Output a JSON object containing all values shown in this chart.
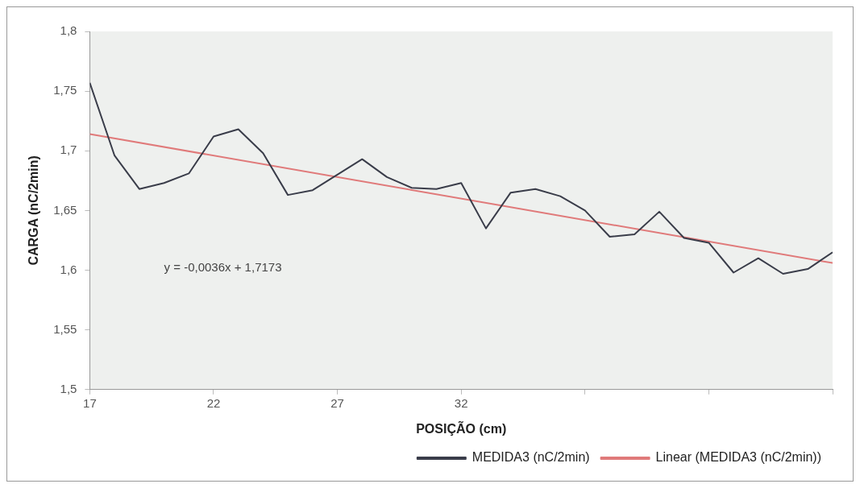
{
  "chart_data": {
    "type": "line",
    "xlabel": "POSIÇÃO (cm)",
    "ylabel": "CARGA (nC/2min)",
    "annotations": [
      "y = -0,0036x + 1,7173"
    ],
    "xlim": [
      17,
      47
    ],
    "xticks": [
      17,
      22,
      27,
      32,
      {
        "value": 37,
        "label": null
      },
      {
        "value": 42,
        "label": null
      },
      {
        "value": 47,
        "label": null
      }
    ],
    "ylim": [
      1.5,
      1.8
    ],
    "yticks": [
      {
        "value": 1.5,
        "label": "1,5"
      },
      {
        "value": 1.55,
        "label": "1,55"
      },
      {
        "value": 1.6,
        "label": "1,6"
      },
      {
        "value": 1.65,
        "label": "1,65"
      },
      {
        "value": 1.7,
        "label": "1,7"
      },
      {
        "value": 1.75,
        "label": "1,75"
      },
      {
        "value": 1.8,
        "label": "1,8"
      }
    ],
    "legend": "bottom right",
    "marker": "none",
    "line_style": "solid",
    "x": [
      17,
      18,
      19,
      20,
      21,
      22,
      23,
      24,
      25,
      26,
      27,
      28,
      29,
      30,
      31,
      32,
      33,
      34,
      35,
      36,
      37,
      38,
      39,
      40,
      41,
      42,
      43,
      44,
      45,
      46,
      47
    ],
    "series": [
      {
        "name": "MEDIDA3 (nC/2min)",
        "color": "#3a3d4a",
        "values": [
          1.757,
          1.696,
          1.668,
          1.673,
          1.681,
          1.712,
          1.718,
          1.698,
          1.663,
          1.667,
          1.68,
          1.693,
          1.678,
          1.669,
          1.668,
          1.673,
          1.635,
          1.665,
          1.668,
          1.662,
          1.65,
          1.628,
          1.63,
          1.649,
          1.627,
          1.623,
          1.598,
          1.61,
          1.597,
          1.601,
          1.615
        ]
      },
      {
        "name": "Linear (MEDIDA3 (nC/2min))",
        "type": "line",
        "color": "#e07a7a",
        "x": [
          17,
          47
        ],
        "values": [
          1.714,
          1.606
        ]
      }
    ]
  }
}
